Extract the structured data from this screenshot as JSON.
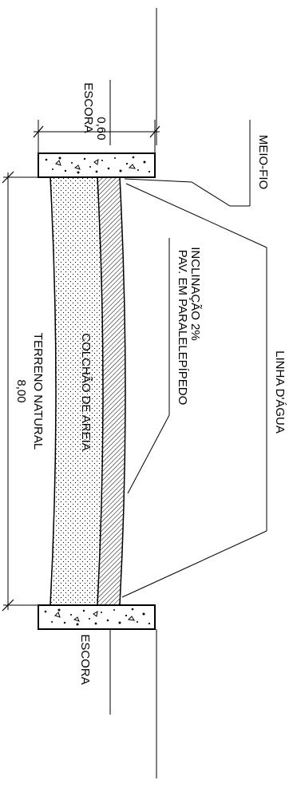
{
  "labels": {
    "escora_top": "ESCORA",
    "escora_bottom": "ESCORA",
    "dim_curb_width": "0,60",
    "dim_total_width": "8,00",
    "meio_fio": "MEIO-FIO",
    "pavement_line1": "PAV. EM PARALELEPÍPEDO",
    "pavement_line2": "INCLINAÇÃO 2%",
    "linha_dagua": "LINHA D'ÁGUA",
    "colchao_de_areia": "COLCHÃO DE AREIA",
    "terreno_natural": "TERRENO NATURAL"
  },
  "colors": {
    "line": "#000000",
    "background": "#ffffff"
  }
}
